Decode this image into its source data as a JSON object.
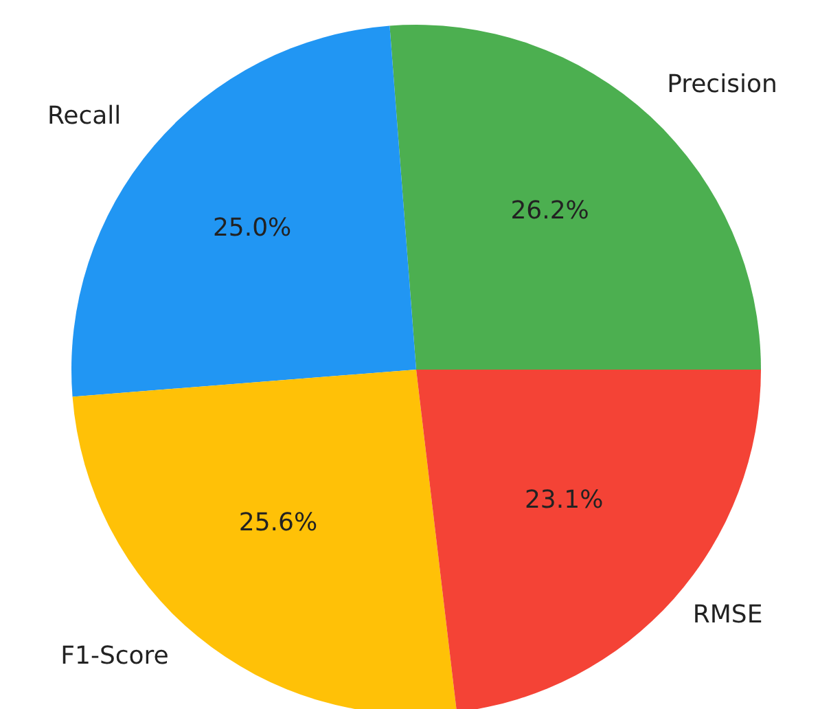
{
  "chart_data": {
    "type": "pie",
    "categories": [
      "Precision",
      "Recall",
      "F1-Score",
      "RMSE"
    ],
    "values": [
      26.2,
      25.0,
      25.6,
      23.1
    ],
    "value_labels": [
      "26.2%",
      "25.0%",
      "25.6%",
      "23.1%"
    ],
    "colors": [
      "#4caf50",
      "#2196f3",
      "#ffc107",
      "#f44336"
    ]
  }
}
